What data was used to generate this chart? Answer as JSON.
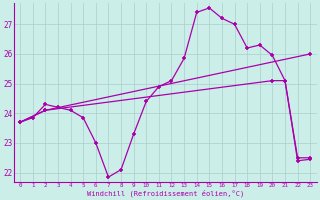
{
  "xlabel": "Windchill (Refroidissement éolien,°C)",
  "xlim": [
    -0.5,
    23.5
  ],
  "ylim": [
    21.7,
    27.7
  ],
  "yticks": [
    22,
    23,
    24,
    25,
    26,
    27
  ],
  "xticks": [
    0,
    1,
    2,
    3,
    4,
    5,
    6,
    7,
    8,
    9,
    10,
    11,
    12,
    13,
    14,
    15,
    16,
    17,
    18,
    19,
    20,
    21,
    22,
    23
  ],
  "background_color": "#cceee8",
  "grid_color": "#aacccc",
  "line_color": "#aa00aa",
  "line1_x": [
    0,
    1,
    2,
    3,
    4,
    5,
    6,
    7,
    8,
    9,
    10,
    11,
    12,
    13,
    14,
    15,
    16,
    17,
    18,
    19,
    20,
    21,
    22,
    23
  ],
  "line1_y": [
    23.7,
    23.85,
    24.3,
    24.2,
    24.1,
    23.85,
    23.0,
    21.85,
    22.1,
    23.3,
    24.4,
    24.9,
    25.1,
    25.85,
    27.4,
    27.55,
    27.2,
    27.0,
    26.2,
    26.3,
    25.95,
    25.1,
    22.5,
    22.5
  ],
  "line2_x": [
    0,
    2,
    23
  ],
  "line2_y": [
    23.7,
    24.1,
    26.0
  ],
  "line3_x": [
    0,
    2,
    20,
    21,
    22,
    23
  ],
  "line3_y": [
    23.7,
    24.1,
    25.1,
    25.1,
    22.4,
    22.45
  ]
}
